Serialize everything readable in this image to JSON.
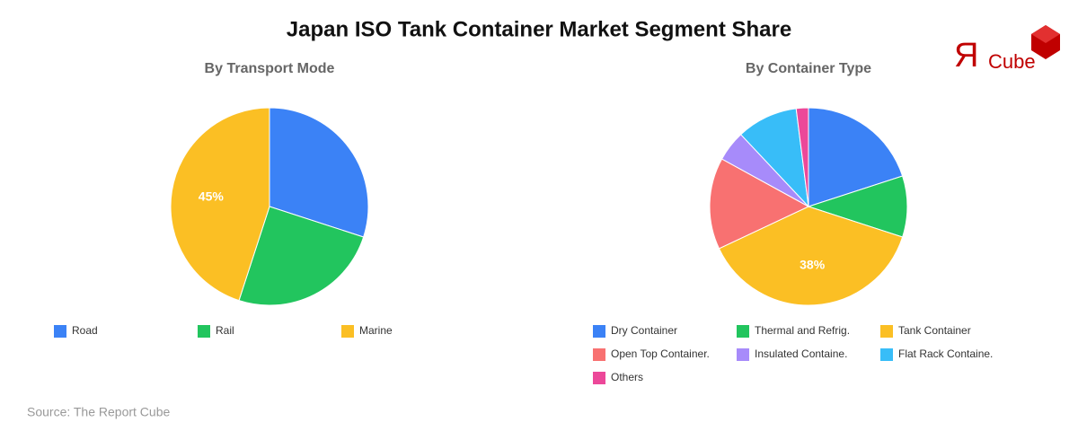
{
  "title": "Japan ISO Tank Container Market Segment Share",
  "source": "Source: The Report Cube",
  "logo": {
    "mark": "Я",
    "text": "Cube"
  },
  "chart_data": [
    {
      "type": "pie",
      "title": "By Transport Mode",
      "categories": [
        "Road",
        "Rail",
        "Marine"
      ],
      "values": [
        30,
        25,
        45
      ],
      "value_labels": [
        null,
        null,
        "45%"
      ],
      "colors": [
        "#3b82f6",
        "#22c55e",
        "#fbbf24"
      ]
    },
    {
      "type": "pie",
      "title": "By Container Type",
      "categories": [
        "Dry Container",
        "Thermal and Refrig.",
        "Tank Container",
        "Open Top Container.",
        "Insulated Containe.",
        "Flat Rack Containe.",
        "Others"
      ],
      "values": [
        20,
        10,
        38,
        15,
        5,
        10,
        2
      ],
      "value_labels": [
        null,
        null,
        "38%",
        null,
        null,
        null,
        null
      ],
      "colors": [
        "#3b82f6",
        "#22c55e",
        "#fbbf24",
        "#f87171",
        "#a78bfa",
        "#38bdf8",
        "#ec4899"
      ]
    }
  ]
}
